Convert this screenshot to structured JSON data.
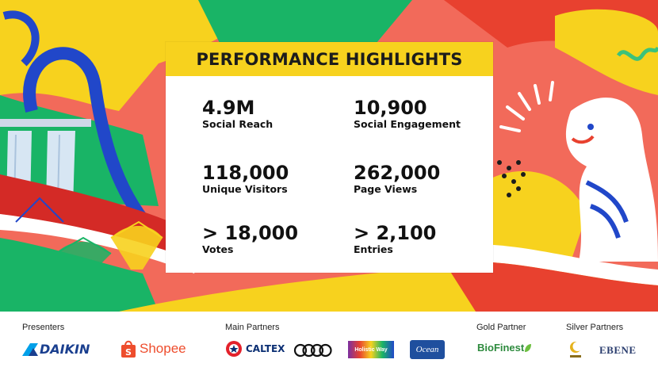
{
  "card": {
    "title": "PERFORMANCE HIGHLIGHTS",
    "metrics": [
      {
        "value": "4.9M",
        "label": "Social Reach"
      },
      {
        "value": "10,900",
        "label": "Social Engagement"
      },
      {
        "value": "118,000",
        "label": "Unique Visitors"
      },
      {
        "value": "262,000",
        "label": "Page Views"
      },
      {
        "value": "> 18,000",
        "label": "Votes"
      },
      {
        "value": "> 2,100",
        "label": "Entries"
      }
    ]
  },
  "footer": {
    "groups": {
      "presenters": "Presenters",
      "main_partners": "Main Partners",
      "gold_partner": "Gold Partner",
      "silver_partners": "Silver Partners"
    },
    "logos": {
      "daikin": "DAIKIN",
      "shopee": "Shopee",
      "caltex": "CALTEX",
      "holistic_way": "Holistic Way",
      "ocean": "Ocean",
      "biofinest": "BioFinest",
      "ebene": "EBENE"
    }
  },
  "colors": {
    "yellow": "#f7d21e",
    "red": "#e8412f",
    "green": "#19b466",
    "blue": "#2147c9",
    "coral": "#f26a5a"
  }
}
